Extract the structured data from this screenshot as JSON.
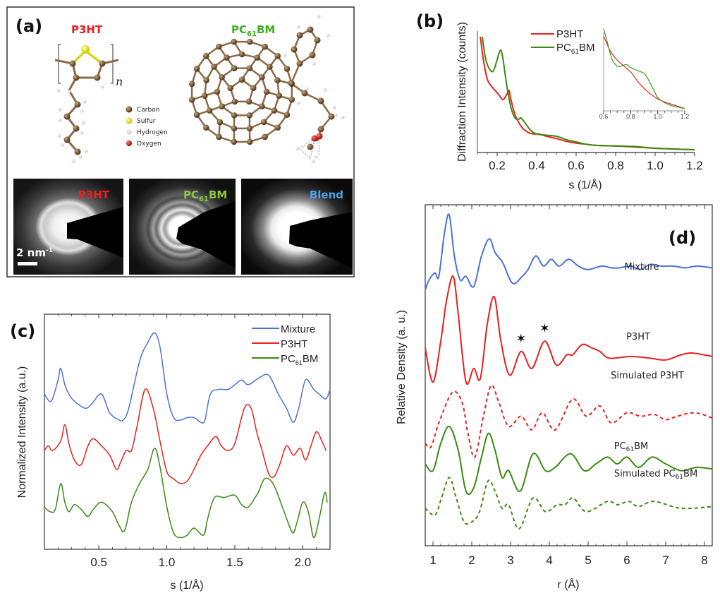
{
  "figure": {
    "panel_a": {
      "label": "(a)",
      "molecule_1": {
        "name": "P3HT",
        "color": "#e8201e",
        "repeat_symbol": "n"
      },
      "molecule_2": {
        "name_main": "PC",
        "name_sub": "61",
        "name_tail": "BM",
        "color": "#3ab01e"
      },
      "atom_legend": [
        {
          "name": "Carbon",
          "color": "#7a5a38"
        },
        {
          "name": "Sulfur",
          "color": "#e8e81a"
        },
        {
          "name": "Hydrogen",
          "color": "#f0d6d6"
        },
        {
          "name": "Oxygen",
          "color": "#d01818"
        }
      ],
      "diffraction_images": [
        {
          "label": "P3HT",
          "label_color": "#e8201e",
          "ring": "single"
        },
        {
          "label_main": "PC",
          "label_sub": "61",
          "label_tail": "BM",
          "label_color": "#8cc63f",
          "ring": "multi"
        },
        {
          "label": "Blend",
          "label_color": "#4aa3e8",
          "ring": "broad"
        }
      ],
      "scale_bar": {
        "text": "2 nm",
        "superscript": "-1"
      }
    }
  },
  "chart_data": [
    {
      "id": "b",
      "panel_label": "(b)",
      "type": "line",
      "xlabel": "s (1/Å)",
      "ylabel": "Diffraction Intensity (counts)",
      "xlim": [
        0.1,
        1.2
      ],
      "ylim": [
        0,
        1
      ],
      "xticks": [
        "0.2",
        "0.4",
        "0.6",
        "0.8",
        "1.0",
        "1.2"
      ],
      "xtick_values": [
        0.2,
        0.4,
        0.6,
        0.8,
        1.0,
        1.2
      ],
      "legend": "top-center",
      "series": [
        {
          "name": "P3HT",
          "color": "#e8201e",
          "x": [
            0.115,
            0.13,
            0.15,
            0.17,
            0.19,
            0.21,
            0.23,
            0.25,
            0.26,
            0.27,
            0.29,
            0.32,
            0.35,
            0.38,
            0.41,
            0.45,
            0.5,
            0.55,
            0.6,
            0.65,
            0.7,
            0.8,
            0.9,
            1.0,
            1.1,
            1.2
          ],
          "y": [
            1.0,
            0.8,
            0.63,
            0.57,
            0.53,
            0.49,
            0.45,
            0.5,
            0.53,
            0.45,
            0.32,
            0.22,
            0.17,
            0.15,
            0.15,
            0.13,
            0.11,
            0.085,
            0.07,
            0.06,
            0.05,
            0.045,
            0.035,
            0.025,
            0.018,
            0.012
          ]
        },
        {
          "name_main": "PC",
          "name_sub": "61",
          "name_tail": "BM",
          "color": "#3a8a10",
          "x": [
            0.125,
            0.14,
            0.16,
            0.18,
            0.2,
            0.21,
            0.22,
            0.23,
            0.25,
            0.27,
            0.29,
            0.31,
            0.32,
            0.34,
            0.37,
            0.4,
            0.44,
            0.5,
            0.55,
            0.6,
            0.65,
            0.7,
            0.8,
            0.9,
            1.0,
            1.1,
            1.2
          ],
          "y": [
            1.0,
            0.82,
            0.72,
            0.7,
            0.8,
            0.86,
            0.88,
            0.8,
            0.56,
            0.38,
            0.29,
            0.28,
            0.29,
            0.25,
            0.18,
            0.15,
            0.14,
            0.13,
            0.1,
            0.08,
            0.06,
            0.05,
            0.045,
            0.04,
            0.025,
            0.018,
            0.012
          ]
        }
      ],
      "inset": {
        "xlim": [
          0.6,
          1.2
        ],
        "xticks": [
          "0.6",
          "0.8",
          "1.0",
          "1.2"
        ],
        "xtick_values": [
          0.6,
          0.8,
          1.0,
          1.2
        ],
        "series": [
          {
            "name": "P3HT",
            "color": "#e8201e",
            "x": [
              0.6,
              0.65,
              0.7,
              0.75,
              0.8,
              0.85,
              0.9,
              0.95,
              1.0,
              1.05,
              1.1,
              1.15,
              1.2
            ],
            "y": [
              1.0,
              0.8,
              0.68,
              0.6,
              0.52,
              0.4,
              0.3,
              0.22,
              0.16,
              0.12,
              0.09,
              0.06,
              0.03
            ]
          },
          {
            "name": "PC61BM",
            "color": "#3a9a18",
            "x": [
              0.6,
              0.63,
              0.66,
              0.7,
              0.73,
              0.77,
              0.8,
              0.85,
              0.9,
              0.93,
              0.97,
              1.0,
              1.05,
              1.1,
              1.15,
              1.2
            ],
            "y": [
              1.1,
              0.9,
              0.7,
              0.6,
              0.6,
              0.62,
              0.58,
              0.54,
              0.5,
              0.42,
              0.28,
              0.18,
              0.11,
              0.07,
              0.05,
              0.03
            ]
          }
        ]
      }
    },
    {
      "id": "c",
      "panel_label": "(c)",
      "type": "line",
      "xlabel": "s (1/Å)",
      "ylabel": "Normalized Intensity (a.u.)",
      "xlim": [
        0.1,
        2.2
      ],
      "ylim": [
        0,
        1
      ],
      "xticks": [
        "0.5",
        "1.0",
        "1.5",
        "2.0"
      ],
      "xtick_values": [
        0.5,
        1.0,
        1.5,
        2.0
      ],
      "legend": "top-right",
      "series": [
        {
          "name": "Mixture",
          "color": "#4a72d8",
          "x": [
            0.1,
            0.15,
            0.2,
            0.22,
            0.25,
            0.28,
            0.32,
            0.4,
            0.45,
            0.52,
            0.58,
            0.65,
            0.68,
            0.72,
            0.8,
            0.86,
            0.91,
            0.95,
            1.0,
            1.05,
            1.1,
            1.15,
            1.2,
            1.25,
            1.28,
            1.32,
            1.38,
            1.45,
            1.5,
            1.55,
            1.6,
            1.68,
            1.75,
            1.82,
            1.88,
            1.93,
            1.97,
            2.02,
            2.08,
            2.12,
            2.17,
            2.2
          ],
          "y": [
            0.66,
            0.63,
            0.72,
            0.77,
            0.7,
            0.66,
            0.63,
            0.6,
            0.62,
            0.66,
            0.58,
            0.55,
            0.55,
            0.6,
            0.8,
            0.88,
            0.92,
            0.86,
            0.66,
            0.56,
            0.55,
            0.56,
            0.56,
            0.54,
            0.55,
            0.66,
            0.68,
            0.68,
            0.7,
            0.72,
            0.7,
            0.73,
            0.74,
            0.66,
            0.6,
            0.54,
            0.6,
            0.72,
            0.68,
            0.66,
            0.64,
            0.68
          ]
        },
        {
          "name": "P3HT",
          "color": "#e8201e",
          "x": [
            0.1,
            0.13,
            0.16,
            0.22,
            0.25,
            0.28,
            0.32,
            0.37,
            0.42,
            0.46,
            0.52,
            0.58,
            0.63,
            0.66,
            0.7,
            0.74,
            0.78,
            0.84,
            0.9,
            0.95,
            1.0,
            1.05,
            1.1,
            1.15,
            1.2,
            1.25,
            1.3,
            1.36,
            1.4,
            1.45,
            1.5,
            1.57,
            1.62,
            1.66,
            1.7,
            1.75,
            1.79,
            1.83,
            1.88,
            1.93,
            1.98,
            2.02,
            2.06,
            2.1,
            2.14,
            2.17
          ],
          "y": [
            0.42,
            0.44,
            0.42,
            0.46,
            0.53,
            0.45,
            0.38,
            0.36,
            0.44,
            0.47,
            0.44,
            0.4,
            0.34,
            0.37,
            0.42,
            0.42,
            0.52,
            0.68,
            0.6,
            0.46,
            0.33,
            0.3,
            0.28,
            0.29,
            0.34,
            0.4,
            0.44,
            0.48,
            0.44,
            0.42,
            0.45,
            0.6,
            0.6,
            0.5,
            0.42,
            0.32,
            0.31,
            0.36,
            0.44,
            0.4,
            0.43,
            0.38,
            0.44,
            0.5,
            0.46,
            0.42
          ]
        },
        {
          "name_main": "PC",
          "name_sub": "61",
          "name_tail": "BM",
          "color": "#3a8a10",
          "x": [
            0.1,
            0.14,
            0.18,
            0.22,
            0.25,
            0.28,
            0.32,
            0.37,
            0.42,
            0.46,
            0.52,
            0.6,
            0.65,
            0.69,
            0.74,
            0.8,
            0.86,
            0.91,
            0.95,
            1.0,
            1.05,
            1.1,
            1.15,
            1.2,
            1.27,
            1.3,
            1.35,
            1.42,
            1.5,
            1.55,
            1.6,
            1.67,
            1.72,
            1.78,
            1.85,
            1.9,
            1.93,
            1.96,
            2.0,
            2.04,
            2.08,
            2.12,
            2.16,
            2.18
          ],
          "y": [
            0.18,
            0.16,
            0.17,
            0.28,
            0.2,
            0.16,
            0.19,
            0.17,
            0.14,
            0.17,
            0.2,
            0.16,
            0.1,
            0.08,
            0.2,
            0.28,
            0.34,
            0.43,
            0.35,
            0.18,
            0.07,
            0.05,
            0.06,
            0.09,
            0.06,
            0.13,
            0.22,
            0.22,
            0.23,
            0.19,
            0.18,
            0.24,
            0.3,
            0.28,
            0.18,
            0.1,
            0.07,
            0.12,
            0.2,
            0.16,
            0.05,
            0.13,
            0.24,
            0.2
          ]
        }
      ]
    },
    {
      "id": "d",
      "panel_label": "(d)",
      "type": "line",
      "xlabel": "r (Å)",
      "ylabel": "Relative Density (a. u.)",
      "xlim": [
        0.8,
        8.2
      ],
      "ylim": [
        0,
        1
      ],
      "xticks": [
        "1",
        "2",
        "3",
        "4",
        "5",
        "6",
        "7",
        "8"
      ],
      "xtick_values": [
        1,
        2,
        3,
        4,
        5,
        6,
        7,
        8
      ],
      "annotations": [
        {
          "text": "✶",
          "x": 3.27,
          "series": "P3HT"
        },
        {
          "text": "✶",
          "x": 3.88,
          "series": "P3HT"
        }
      ],
      "series": [
        {
          "name": "Mixture",
          "label": "Mixture",
          "color": "#4a72d8",
          "dash": false,
          "x": [
            0.8,
            0.9,
            1.05,
            1.15,
            1.3,
            1.42,
            1.55,
            1.7,
            1.85,
            2.05,
            2.25,
            2.45,
            2.6,
            2.8,
            3.05,
            3.3,
            3.45,
            3.65,
            3.85,
            4.05,
            4.25,
            4.5,
            4.75,
            5.0,
            5.35,
            5.6,
            5.8,
            6.1,
            6.35,
            6.6,
            6.9,
            7.2,
            7.5,
            7.8,
            8.2
          ],
          "y": [
            0.75,
            0.78,
            0.8,
            0.79,
            0.92,
            0.97,
            0.85,
            0.78,
            0.79,
            0.76,
            0.85,
            0.9,
            0.86,
            0.83,
            0.77,
            0.79,
            0.81,
            0.85,
            0.82,
            0.84,
            0.82,
            0.84,
            0.82,
            0.81,
            0.82,
            0.815,
            0.815,
            0.82,
            0.81,
            0.825,
            0.82,
            0.82,
            0.815,
            0.82,
            0.815
          ]
        },
        {
          "name": "P3HT",
          "label": "P3HT",
          "color": "#e8201e",
          "dash": false,
          "x": [
            0.8,
            1.0,
            1.2,
            1.35,
            1.52,
            1.65,
            1.85,
            2.05,
            2.22,
            2.4,
            2.58,
            2.75,
            2.98,
            3.27,
            3.55,
            3.88,
            4.18,
            4.45,
            4.6,
            4.85,
            5.1,
            5.3,
            5.55,
            6.1,
            6.6,
            7.0,
            7.4,
            7.7,
            8.2
          ],
          "y": [
            0.58,
            0.48,
            0.6,
            0.72,
            0.79,
            0.68,
            0.48,
            0.52,
            0.49,
            0.65,
            0.73,
            0.6,
            0.5,
            0.57,
            0.52,
            0.6,
            0.53,
            0.56,
            0.56,
            0.59,
            0.58,
            0.57,
            0.55,
            0.555,
            0.55,
            0.545,
            0.56,
            0.565,
            0.555
          ]
        },
        {
          "name": "Simulated P3HT",
          "label": "Simulated P3HT",
          "color": "#e8201e",
          "dash": true,
          "x": [
            0.8,
            0.95,
            1.15,
            1.5,
            1.75,
            1.9,
            2.08,
            2.3,
            2.5,
            2.7,
            2.95,
            3.27,
            3.55,
            3.82,
            4.15,
            4.6,
            4.95,
            5.3,
            5.6,
            6.0,
            6.35,
            6.7,
            7.0,
            7.3,
            7.75,
            8.2
          ],
          "y": [
            0.3,
            0.29,
            0.36,
            0.45,
            0.42,
            0.33,
            0.26,
            0.38,
            0.47,
            0.42,
            0.35,
            0.38,
            0.34,
            0.39,
            0.34,
            0.43,
            0.38,
            0.41,
            0.36,
            0.39,
            0.38,
            0.385,
            0.37,
            0.38,
            0.39,
            0.375
          ]
        },
        {
          "name": "PC61BM",
          "label_main": "PC",
          "label_sub": "61",
          "label_tail": "BM",
          "color": "#3a8a10",
          "dash": false,
          "x": [
            0.8,
            1.0,
            1.2,
            1.42,
            1.65,
            1.85,
            2.05,
            2.25,
            2.43,
            2.6,
            2.78,
            2.95,
            3.25,
            3.58,
            3.9,
            4.15,
            4.55,
            4.9,
            5.2,
            5.5,
            5.75,
            6.0,
            6.3,
            6.65,
            7.0,
            7.4,
            7.8,
            8.2
          ],
          "y": [
            0.24,
            0.22,
            0.3,
            0.35,
            0.28,
            0.16,
            0.17,
            0.26,
            0.33,
            0.28,
            0.2,
            0.22,
            0.16,
            0.27,
            0.22,
            0.23,
            0.27,
            0.22,
            0.24,
            0.26,
            0.24,
            0.26,
            0.23,
            0.26,
            0.24,
            0.22,
            0.23,
            0.225
          ]
        },
        {
          "name": "Simulated PC61BM",
          "label_main": "Simulated PC",
          "label_sub": "61",
          "label_tail": "BM",
          "color": "#3a8a10",
          "dash": true,
          "x": [
            0.8,
            1.05,
            1.22,
            1.42,
            1.6,
            1.8,
            2.0,
            2.2,
            2.42,
            2.6,
            2.78,
            2.95,
            3.22,
            3.58,
            3.9,
            4.2,
            4.4,
            4.62,
            4.95,
            5.5,
            5.75,
            6.05,
            6.3,
            6.7,
            7.4,
            8.2
          ],
          "y": [
            0.11,
            0.09,
            0.14,
            0.2,
            0.14,
            0.07,
            0.07,
            0.1,
            0.19,
            0.16,
            0.11,
            0.12,
            0.05,
            0.14,
            0.1,
            0.12,
            0.12,
            0.14,
            0.1,
            0.13,
            0.12,
            0.13,
            0.115,
            0.13,
            0.11,
            0.115
          ]
        }
      ]
    }
  ]
}
